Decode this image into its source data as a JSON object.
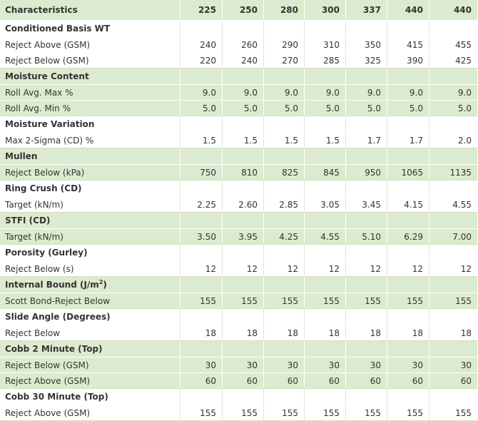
{
  "header": {
    "label": "Characteristics",
    "columns": [
      "225",
      "250",
      "280",
      "300",
      "337",
      "440",
      "440"
    ]
  },
  "sections": [
    {
      "title": "Conditioned Basis WT",
      "rows": [
        {
          "label": "Reject Above (GSM)",
          "values": [
            "240",
            "260",
            "290",
            "310",
            "350",
            "415",
            "455"
          ]
        },
        {
          "label": "Reject Below (GSM)",
          "values": [
            "220",
            "240",
            "270",
            "285",
            "325",
            "390",
            "425"
          ]
        }
      ]
    },
    {
      "title": "Moisture Content",
      "rows": [
        {
          "label": "Roll Avg. Max %",
          "values": [
            "9.0",
            "9.0",
            "9.0",
            "9.0",
            "9.0",
            "9.0",
            "9.0"
          ]
        },
        {
          "label": "Roll Avg. Min %",
          "values": [
            "5.0",
            "5.0",
            "5.0",
            "5.0",
            "5.0",
            "5.0",
            "5.0"
          ]
        }
      ]
    },
    {
      "title": "Moisture Variation",
      "rows": [
        {
          "label": "Max 2-Sigma (CD) %",
          "values": [
            "1.5",
            "1.5",
            "1.5",
            "1.5",
            "1.7",
            "1.7",
            "2.0"
          ]
        }
      ]
    },
    {
      "title": "Mullen",
      "rows": [
        {
          "label": "Reject Below (kPa)",
          "values": [
            "750",
            "810",
            "825",
            "845",
            "950",
            "1065",
            "1135"
          ]
        }
      ]
    },
    {
      "title": "Ring Crush (CD)",
      "rows": [
        {
          "label": "Target (kN/m)",
          "values": [
            "2.25",
            "2.60",
            "2.85",
            "3.05",
            "3.45",
            "4.15",
            "4.55"
          ]
        }
      ]
    },
    {
      "title": "STFI (CD)",
      "rows": [
        {
          "label": "Target (kN/m)",
          "values": [
            "3.50",
            "3.95",
            "4.25",
            "4.55",
            "5.10",
            "6.29",
            "7.00"
          ]
        }
      ]
    },
    {
      "title": "Porosity (Gurley)",
      "rows": [
        {
          "label": "Reject Below (s)",
          "values": [
            "12",
            "12",
            "12",
            "12",
            "12",
            "12",
            "12"
          ]
        }
      ]
    },
    {
      "title": "Internal Bound (J/m",
      "title_sup": "2",
      "title_end": ")",
      "rows": [
        {
          "label": "Scott Bond-Reject Below",
          "values": [
            "155",
            "155",
            "155",
            "155",
            "155",
            "155",
            "155"
          ]
        }
      ]
    },
    {
      "title": "Slide Angle (Degrees)",
      "rows": [
        {
          "label": "Reject Below",
          "values": [
            "18",
            "18",
            "18",
            "18",
            "18",
            "18",
            "18"
          ]
        }
      ]
    },
    {
      "title": "Cobb 2 Minute (Top)",
      "rows": [
        {
          "label": "Reject Below (GSM)",
          "values": [
            "30",
            "30",
            "30",
            "30",
            "30",
            "30",
            "30"
          ]
        },
        {
          "label": "Reject Above (GSM)",
          "values": [
            "60",
            "60",
            "60",
            "60",
            "60",
            "60",
            "60"
          ]
        }
      ]
    },
    {
      "title": "Cobb 30 Minute (Top)",
      "rows": [
        {
          "label": "Reject Above (GSM)",
          "values": [
            "155",
            "155",
            "155",
            "155",
            "155",
            "155",
            "155"
          ]
        }
      ]
    }
  ],
  "colors": {
    "band": "#dcebcf",
    "text": "#333333"
  }
}
